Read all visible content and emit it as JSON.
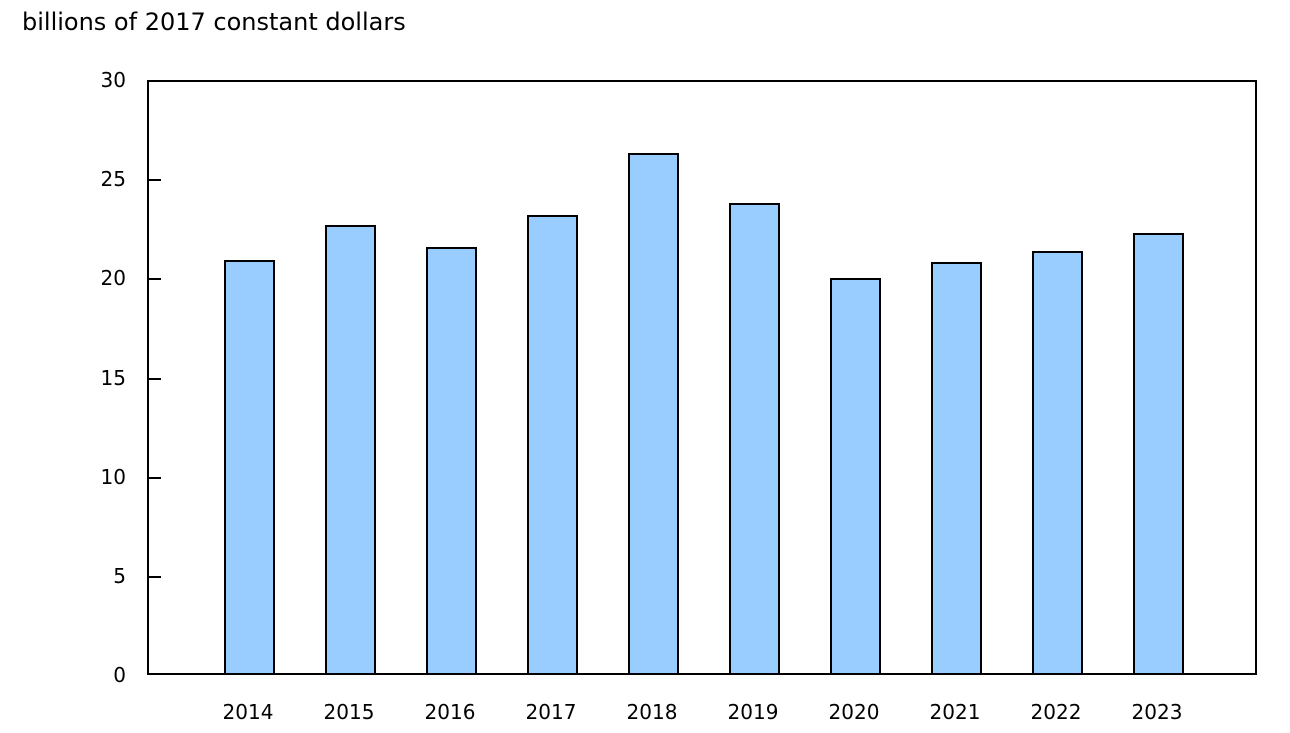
{
  "chart_data": {
    "type": "bar",
    "title": "",
    "xlabel": "",
    "ylabel": "billions of 2017 constant dollars",
    "ylim": [
      0,
      30
    ],
    "yticks": [
      0,
      5,
      10,
      15,
      20,
      25,
      30
    ],
    "grid": false,
    "legend": null,
    "categories": [
      "2014",
      "2015",
      "2016",
      "2017",
      "2018",
      "2019",
      "2020",
      "2021",
      "2022",
      "2023"
    ],
    "values": [
      20.8,
      22.6,
      21.5,
      23.1,
      26.2,
      23.7,
      19.9,
      20.7,
      21.3,
      22.2
    ],
    "bar_color": "#99ccff",
    "bar_edge_color": "#000000"
  },
  "labels": {
    "y_axis_title": "billions of 2017 constant dollars"
  }
}
